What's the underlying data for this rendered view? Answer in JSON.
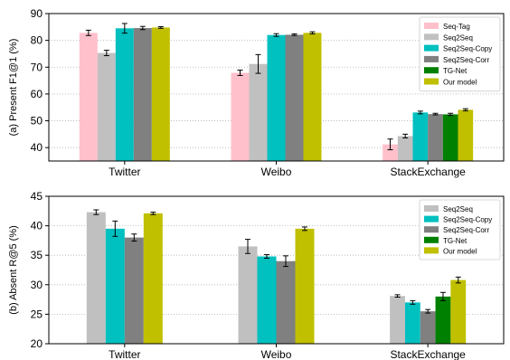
{
  "chart_data": [
    {
      "type": "bar",
      "ylabel": "(a) Present F1@1 (%)",
      "categories": [
        "Twitter",
        "Weibo",
        "StackExchange"
      ],
      "ylim": [
        35,
        90
      ],
      "yticks": [
        40,
        50,
        60,
        70,
        80,
        90
      ],
      "grid": "horizontal dotted",
      "legend_position": "top-right",
      "series": [
        {
          "name": "Seq-Tag",
          "color": "#ffc0cb",
          "values": [
            82.8,
            67.9,
            41.2
          ],
          "errors": [
            1.0,
            1.0,
            2.0
          ]
        },
        {
          "name": "Seq2Seq",
          "color": "#c0c0c0",
          "values": [
            75.3,
            71.2,
            44.3
          ],
          "errors": [
            1.0,
            3.5,
            0.7
          ]
        },
        {
          "name": "Seq2Seq-Copy",
          "color": "#00c0c0",
          "values": [
            84.5,
            82.0,
            53.1
          ],
          "errors": [
            1.8,
            0.5,
            0.5
          ]
        },
        {
          "name": "Seq2Seq-Corr",
          "color": "#808080",
          "values": [
            84.6,
            82.1,
            52.5
          ],
          "errors": [
            0.6,
            0.3,
            0.3
          ]
        },
        {
          "name": "TG-Net",
          "color": "#008000",
          "values": [
            null,
            null,
            52.4
          ],
          "errors": [
            null,
            null,
            0.4
          ]
        },
        {
          "name": "Our model",
          "color": "#c0c000",
          "values": [
            84.8,
            82.8,
            54.1
          ],
          "errors": [
            0.3,
            0.4,
            0.4
          ]
        }
      ]
    },
    {
      "type": "bar",
      "ylabel": "(b) Absent R@5 (%)",
      "categories": [
        "Twitter",
        "Weibo",
        "StackExchange"
      ],
      "ylim": [
        20,
        45
      ],
      "yticks": [
        20,
        25,
        30,
        35,
        40,
        45
      ],
      "grid": "horizontal dotted",
      "legend_position": "top-right",
      "series": [
        {
          "name": "Seq2Seq",
          "color": "#c0c0c0",
          "values": [
            42.3,
            36.5,
            28.1
          ],
          "errors": [
            0.4,
            1.2,
            0.2
          ]
        },
        {
          "name": "Seq2Seq-Copy",
          "color": "#00c0c0",
          "values": [
            39.5,
            34.8,
            27.0
          ],
          "errors": [
            1.3,
            0.3,
            0.3
          ]
        },
        {
          "name": "Seq2Seq-Corr",
          "color": "#808080",
          "values": [
            38.0,
            34.0,
            25.5
          ],
          "errors": [
            0.6,
            0.9,
            0.3
          ]
        },
        {
          "name": "TG-Net",
          "color": "#008000",
          "values": [
            null,
            null,
            28.0
          ],
          "errors": [
            null,
            null,
            0.7
          ]
        },
        {
          "name": "Our model",
          "color": "#c0c000",
          "values": [
            42.1,
            39.5,
            30.8
          ],
          "errors": [
            0.2,
            0.3,
            0.5
          ]
        }
      ]
    }
  ]
}
